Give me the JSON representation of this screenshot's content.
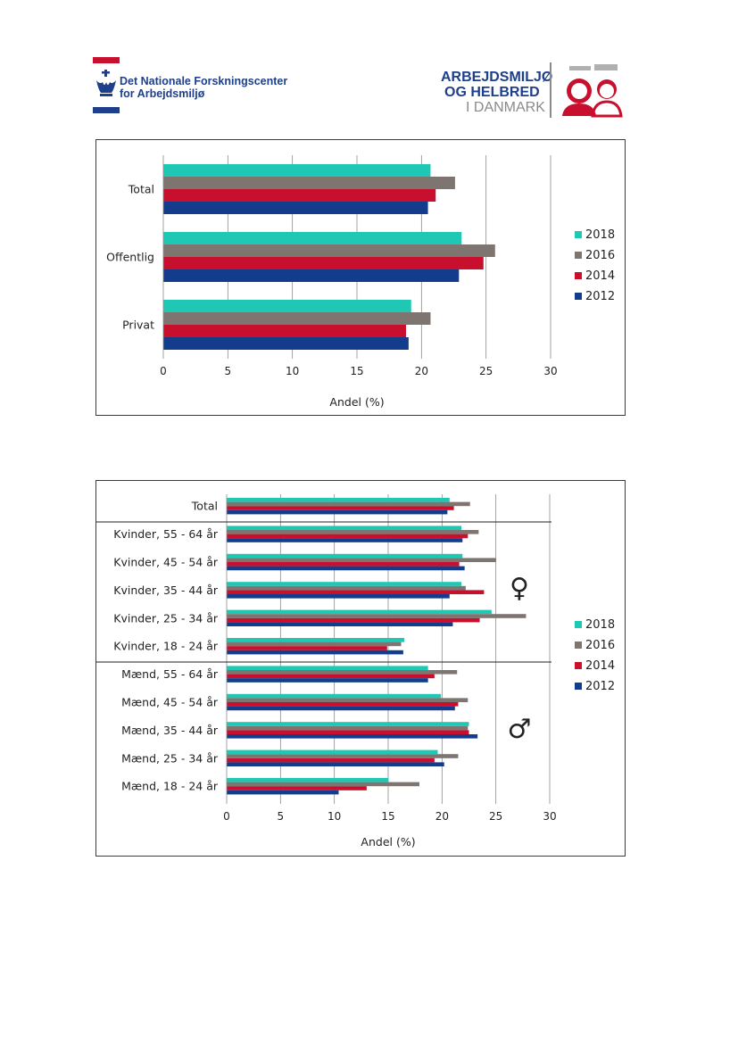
{
  "header": {
    "org_line1": "Det Nationale Forskningscenter",
    "org_line2": "for Arbejdsmiljø",
    "brand_line1": "ARBEJDSMILJØ",
    "brand_line2": "OG HELBRED",
    "brand_line3": "I DANMARK"
  },
  "colors": {
    "2018": "#1ec8b4",
    "2016": "#7f7570",
    "2014": "#c8102e",
    "2012": "#133d8c",
    "brand_red": "#c8102e",
    "brand_blue": "#1d3f8c"
  },
  "chart_data": [
    {
      "type": "bar",
      "orientation": "horizontal",
      "categories": [
        "Total",
        "Offentlig",
        "Privat"
      ],
      "series": [
        {
          "name": "2018",
          "values": [
            20.7,
            23.1,
            19.2
          ]
        },
        {
          "name": "2016",
          "values": [
            22.6,
            25.7,
            20.7
          ]
        },
        {
          "name": "2014",
          "values": [
            21.1,
            24.8,
            18.8
          ]
        },
        {
          "name": "2012",
          "values": [
            20.5,
            22.9,
            19.0
          ]
        }
      ],
      "xlabel": "Andel (%)",
      "xlim": [
        0,
        30
      ],
      "xticks": [
        0,
        5,
        10,
        15,
        20,
        25,
        30
      ],
      "grid": "vertical",
      "legend": "right"
    },
    {
      "type": "bar",
      "orientation": "horizontal",
      "categories": [
        "Total",
        "Kvinder, 55 - 64 år",
        "Kvinder, 45 - 54 år",
        "Kvinder, 35 - 44 år",
        "Kvinder, 25 - 34 år",
        "Kvinder, 18 - 24 år",
        "Mænd, 55 - 64 år",
        "Mænd, 45 - 54 år",
        "Mænd, 35 - 44 år",
        "Mænd, 25 - 34 år",
        "Mænd, 18 - 24 år"
      ],
      "series": [
        {
          "name": "2018",
          "values": [
            20.7,
            21.8,
            21.9,
            21.8,
            24.6,
            16.5,
            18.7,
            19.9,
            22.5,
            19.6,
            15.0
          ]
        },
        {
          "name": "2016",
          "values": [
            22.6,
            23.4,
            25.0,
            22.2,
            27.8,
            16.2,
            21.4,
            22.4,
            22.4,
            21.5,
            17.9
          ]
        },
        {
          "name": "2014",
          "values": [
            21.1,
            22.4,
            21.6,
            23.9,
            23.5,
            14.9,
            19.3,
            21.5,
            22.5,
            19.3,
            13.0
          ]
        },
        {
          "name": "2012",
          "values": [
            20.5,
            21.9,
            22.1,
            20.7,
            21.0,
            16.4,
            18.7,
            21.2,
            23.3,
            20.2,
            10.4
          ]
        }
      ],
      "xlabel": "Andel (%)",
      "xlim": [
        0,
        30
      ],
      "xticks": [
        0,
        5,
        10,
        15,
        20,
        25,
        30
      ],
      "grid": "vertical",
      "legend": "right",
      "group_symbols": [
        "♀",
        "♂"
      ]
    }
  ]
}
